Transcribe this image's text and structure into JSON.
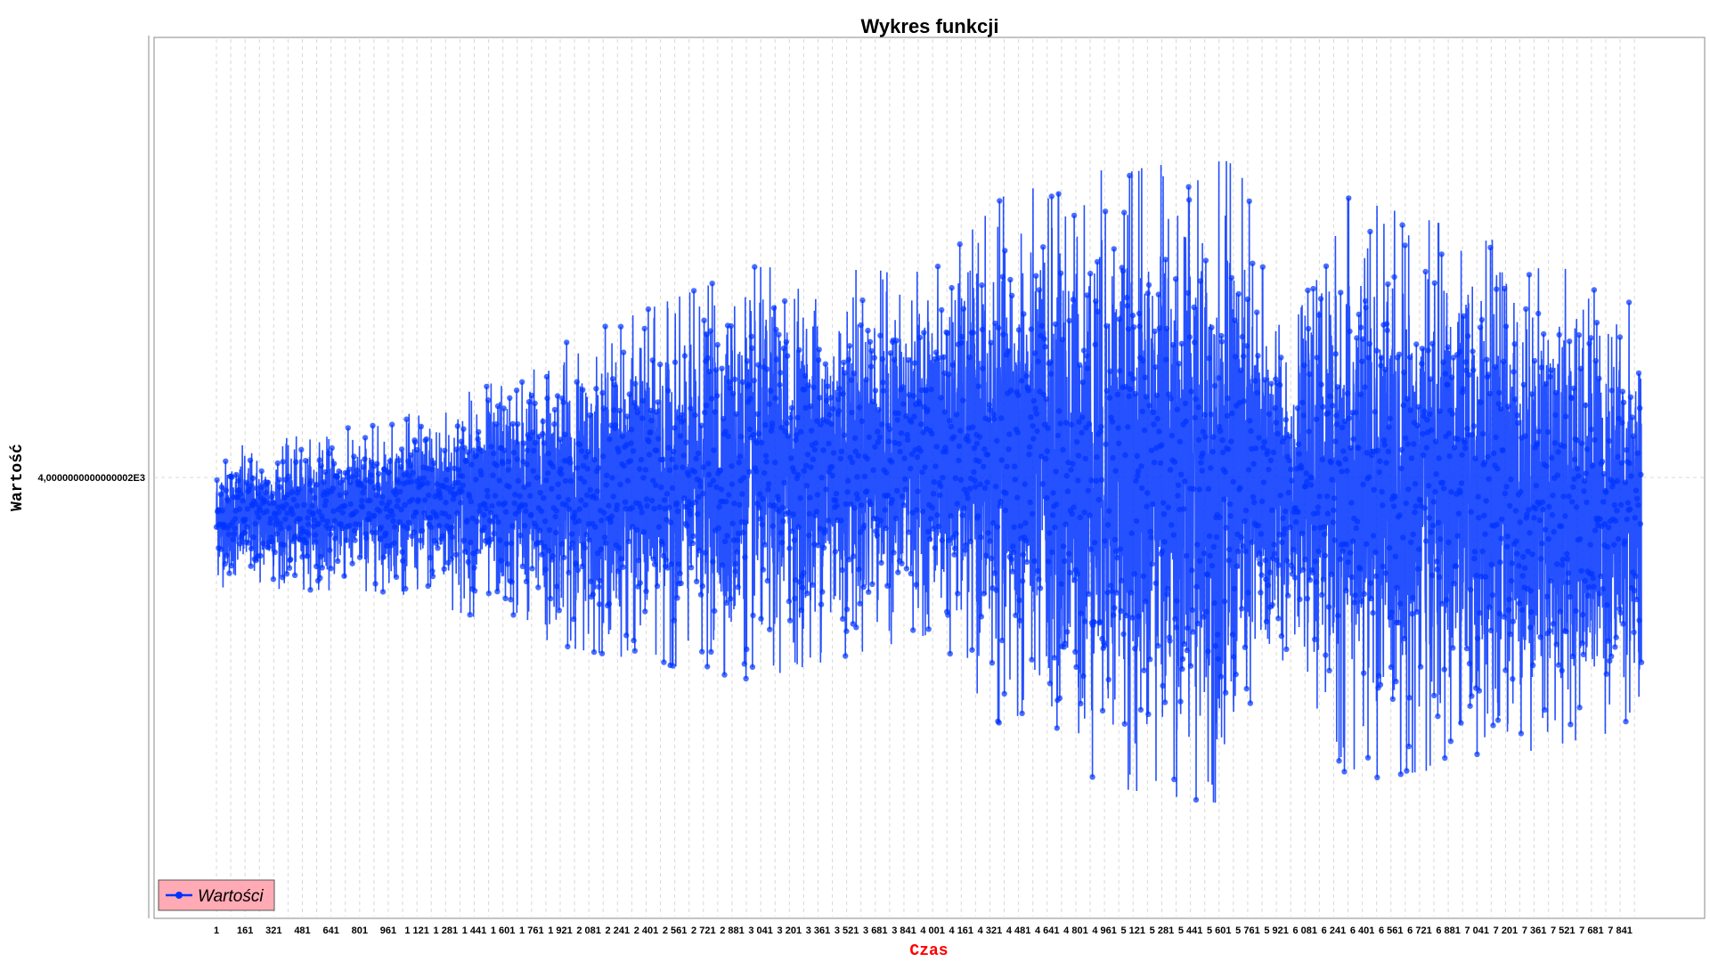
{
  "chart_data": {
    "type": "line",
    "title": "Wykres funkcji",
    "xlabel": "Czas",
    "ylabel": "Wartość",
    "y_tick_label": "4,0000000000000002E3",
    "x_tick_labels": [
      "1",
      "161",
      "321",
      "481",
      "641",
      "801",
      "961",
      "1 121",
      "1 281",
      "1 441",
      "1 601",
      "1 761",
      "1 921",
      "2 081",
      "2 241",
      "2 401",
      "2 561",
      "2 721",
      "2 881",
      "3 041",
      "3 201",
      "3 361",
      "3 521",
      "3 681",
      "3 841",
      "4 001",
      "4 161",
      "4 321",
      "4 481",
      "4 641",
      "4 801",
      "4 961",
      "5 121",
      "5 281",
      "5 441",
      "5 601",
      "5 761",
      "5 921",
      "6 081",
      "6 241",
      "6 401",
      "6 561",
      "6 721",
      "6 881",
      "7 041",
      "7 201",
      "7 361",
      "7 521",
      "7 681",
      "7 841"
    ],
    "x_range": [
      1,
      7960
    ],
    "grid": true,
    "legend_placement": "bottom-left",
    "series": [
      {
        "name": "Wartości",
        "color": "#0033ff",
        "n_points": 7960,
        "envelope_y_units": [
          {
            "x": 1,
            "amp": 0.16
          },
          {
            "x": 1000,
            "amp": 0.2
          },
          {
            "x": 2000,
            "amp": 0.36
          },
          {
            "x": 3000,
            "amp": 0.48
          },
          {
            "x": 4000,
            "amp": 0.42
          },
          {
            "x": 4400,
            "amp": 0.62
          },
          {
            "x": 5000,
            "amp": 0.72
          },
          {
            "x": 5700,
            "amp": 0.75
          },
          {
            "x": 6000,
            "amp": 0.35
          },
          {
            "x": 6300,
            "amp": 0.68
          },
          {
            "x": 7000,
            "amp": 0.62
          },
          {
            "x": 7960,
            "amp": 0.5
          }
        ],
        "baseline_y_units": [
          {
            "x": 1,
            "v": -0.1
          },
          {
            "x": 2000,
            "v": -0.04
          },
          {
            "x": 4000,
            "v": 0.06
          },
          {
            "x": 5000,
            "v": 0.0
          },
          {
            "x": 6000,
            "v": -0.02
          },
          {
            "x": 7960,
            "v": -0.08
          }
        ]
      }
    ]
  },
  "legend_icon": "line-with-dot",
  "colors": {
    "series": "#0033ff",
    "legend_bg": "#ffaab4",
    "grid": "#d8d8d8",
    "xlabel": "#ff0000"
  }
}
